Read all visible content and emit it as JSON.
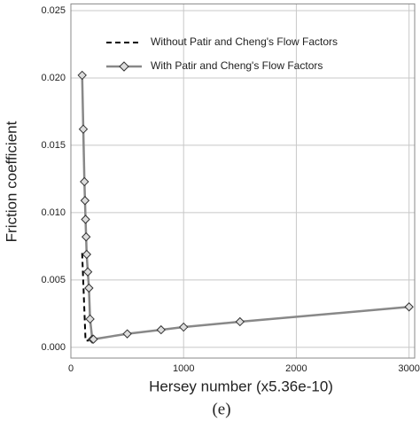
{
  "chart_data": {
    "type": "line",
    "x_label": "Hersey number (x5.36e-10)",
    "y_label": "Friction coefficient",
    "caption": "(e)",
    "xlim": [
      0,
      3050
    ],
    "ylim": [
      -0.0008,
      0.0255
    ],
    "xticks": [
      0,
      1000,
      2000,
      3000
    ],
    "yticks": [
      {
        "value": 0,
        "label": "0.000"
      },
      {
        "value": 0.005,
        "label": "0.005"
      },
      {
        "value": 0.01,
        "label": "0.010"
      },
      {
        "value": 0.015,
        "label": "0.015"
      },
      {
        "value": 0.02,
        "label": "0.020"
      },
      {
        "value": 0.025,
        "label": "0.025"
      }
    ],
    "grid": true,
    "legend": "upper left",
    "series": [
      {
        "name": "Without Patir and Cheng's Flow Factors",
        "color": "#000000",
        "dashed": true,
        "markers": false,
        "x": [
          100,
          130,
          160
        ],
        "values": [
          0.007,
          0.0005,
          0.0005
        ]
      },
      {
        "name": "With Patir and Cheng's Flow Factors",
        "color": "#888888",
        "dashed": false,
        "markers": true,
        "x": [
          100,
          110,
          120,
          125,
          130,
          135,
          140,
          150,
          160,
          170,
          190,
          200,
          500,
          800,
          1000,
          1500,
          3000
        ],
        "values": [
          0.0202,
          0.0162,
          0.0123,
          0.0109,
          0.0095,
          0.0082,
          0.0069,
          0.0056,
          0.0044,
          0.0021,
          0.0006,
          0.0006,
          0.001,
          0.0013,
          0.0015,
          0.0019,
          0.003
        ]
      }
    ]
  }
}
